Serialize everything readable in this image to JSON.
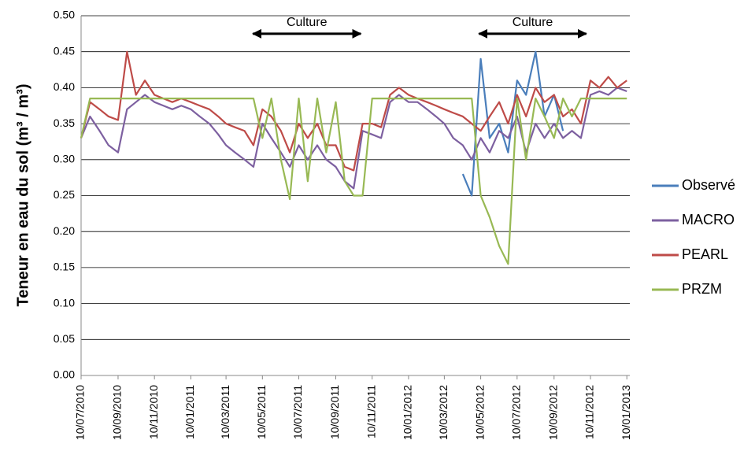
{
  "chart_data": {
    "type": "line",
    "y_label": "Teneur en eau du sol (m³ / m³)",
    "annotations": [
      {
        "text": "Culture",
        "x": [
          "24/04/2011",
          "22/10/2011"
        ],
        "y": 0.475
      },
      {
        "text": "Culture",
        "x": [
          "07/05/2012",
          "03/11/2012"
        ],
        "y": 0.475
      }
    ],
    "x": [
      "10/07/2010",
      "25/07/2010",
      "10/08/2010",
      "25/08/2010",
      "10/09/2010",
      "25/09/2010",
      "10/10/2010",
      "25/10/2010",
      "10/11/2010",
      "25/11/2010",
      "10/12/2010",
      "25/12/2010",
      "10/01/2011",
      "25/01/2011",
      "10/02/2011",
      "25/02/2011",
      "10/03/2011",
      "25/03/2011",
      "10/04/2011",
      "25/04/2011",
      "10/05/2011",
      "25/05/2011",
      "10/06/2011",
      "25/06/2011",
      "10/07/2011",
      "25/07/2011",
      "10/08/2011",
      "25/08/2011",
      "10/09/2011",
      "25/09/2011",
      "10/10/2011",
      "25/10/2011",
      "10/11/2011",
      "25/11/2011",
      "10/12/2011",
      "25/12/2011",
      "10/01/2012",
      "25/01/2012",
      "10/02/2012",
      "25/02/2012",
      "10/03/2012",
      "25/03/2012",
      "10/04/2012",
      "25/04/2012",
      "10/05/2012",
      "25/05/2012",
      "10/06/2012",
      "25/06/2012",
      "10/07/2012",
      "25/07/2012",
      "10/08/2012",
      "25/08/2012",
      "10/09/2012",
      "25/09/2012",
      "10/10/2012",
      "25/10/2012",
      "10/11/2012",
      "25/11/2012",
      "10/12/2012",
      "25/12/2012",
      "10/01/2013"
    ],
    "series": [
      {
        "name": "Observé",
        "color": "#4a7ebb",
        "values": [
          null,
          null,
          null,
          null,
          null,
          null,
          null,
          null,
          null,
          null,
          null,
          null,
          null,
          null,
          null,
          null,
          null,
          null,
          null,
          null,
          null,
          null,
          null,
          null,
          null,
          null,
          null,
          null,
          null,
          null,
          null,
          null,
          null,
          null,
          null,
          null,
          null,
          null,
          null,
          null,
          null,
          null,
          0.28,
          0.25,
          0.44,
          0.33,
          0.35,
          0.31,
          0.41,
          0.39,
          0.45,
          0.36,
          0.39,
          0.34,
          null,
          null,
          null,
          null,
          null,
          null,
          null
        ]
      },
      {
        "name": "MACRO",
        "color": "#7d60a0",
        "values": [
          0.33,
          0.36,
          0.34,
          0.32,
          0.31,
          0.37,
          0.38,
          0.39,
          0.38,
          0.375,
          0.37,
          0.375,
          0.37,
          0.36,
          0.35,
          0.335,
          0.32,
          0.31,
          0.3,
          0.29,
          0.35,
          0.33,
          0.31,
          0.29,
          0.32,
          0.3,
          0.32,
          0.3,
          0.29,
          0.27,
          0.26,
          0.34,
          0.335,
          0.33,
          0.38,
          0.39,
          0.38,
          0.38,
          0.37,
          0.36,
          0.35,
          0.33,
          0.32,
          0.3,
          0.33,
          0.31,
          0.34,
          0.33,
          0.36,
          0.31,
          0.35,
          0.33,
          0.35,
          0.33,
          0.34,
          0.33,
          0.39,
          0.395,
          0.39,
          0.4,
          0.395
        ]
      },
      {
        "name": "PEARL",
        "color": "#be4b48",
        "values": [
          0.33,
          0.38,
          0.37,
          0.36,
          0.355,
          0.45,
          0.39,
          0.41,
          0.39,
          0.385,
          0.38,
          0.385,
          0.38,
          0.375,
          0.37,
          0.36,
          0.35,
          0.345,
          0.34,
          0.32,
          0.37,
          0.36,
          0.34,
          0.31,
          0.35,
          0.33,
          0.35,
          0.32,
          0.32,
          0.29,
          0.285,
          0.35,
          0.35,
          0.345,
          0.39,
          0.4,
          0.39,
          0.385,
          0.38,
          0.375,
          0.37,
          0.365,
          0.36,
          0.35,
          0.34,
          0.36,
          0.38,
          0.35,
          0.39,
          0.36,
          0.4,
          0.38,
          0.39,
          0.36,
          0.37,
          0.35,
          0.41,
          0.4,
          0.415,
          0.4,
          0.41
        ]
      },
      {
        "name": "PRZM",
        "color": "#98b954",
        "values": [
          0.33,
          0.385,
          0.385,
          0.385,
          0.385,
          0.385,
          0.385,
          0.385,
          0.385,
          0.385,
          0.385,
          0.385,
          0.385,
          0.385,
          0.385,
          0.385,
          0.385,
          0.385,
          0.385,
          0.385,
          0.33,
          0.385,
          0.3,
          0.245,
          0.385,
          0.27,
          0.385,
          0.31,
          0.38,
          0.27,
          0.25,
          0.25,
          0.385,
          0.385,
          0.385,
          0.385,
          0.385,
          0.385,
          0.385,
          0.385,
          0.385,
          0.385,
          0.385,
          0.385,
          0.25,
          0.22,
          0.18,
          0.155,
          0.385,
          0.3,
          0.385,
          0.36,
          0.33,
          0.385,
          0.36,
          0.385,
          0.385,
          0.385,
          0.385,
          0.385,
          0.385
        ]
      }
    ],
    "xlim": [
      "10/07/2010",
      "15/01/2013"
    ],
    "xticks": [
      "10/07/2010",
      "10/09/2010",
      "10/11/2010",
      "10/01/2011",
      "10/03/2011",
      "10/05/2011",
      "10/07/2011",
      "10/09/2011",
      "10/11/2011",
      "10/01/2012",
      "10/03/2012",
      "10/05/2012",
      "10/07/2012",
      "10/09/2012",
      "10/11/2012",
      "10/01/2013"
    ],
    "ylim": [
      0,
      0.5
    ],
    "yticks": [
      {
        "value": 0,
        "label": "0.00"
      },
      {
        "value": 0.05,
        "label": "0.05"
      },
      {
        "value": 0.1,
        "label": "0.10"
      },
      {
        "value": 0.15,
        "label": "0.15"
      },
      {
        "value": 0.2,
        "label": "0.20"
      },
      {
        "value": 0.25,
        "label": "0.25"
      },
      {
        "value": 0.3,
        "label": "0.30"
      },
      {
        "value": 0.35,
        "label": "0.35"
      },
      {
        "value": 0.4,
        "label": "0.40"
      },
      {
        "value": 0.45,
        "label": "0.45"
      },
      {
        "value": 0.5,
        "label": "0.50"
      }
    ],
    "grid": true,
    "legend": "right"
  }
}
